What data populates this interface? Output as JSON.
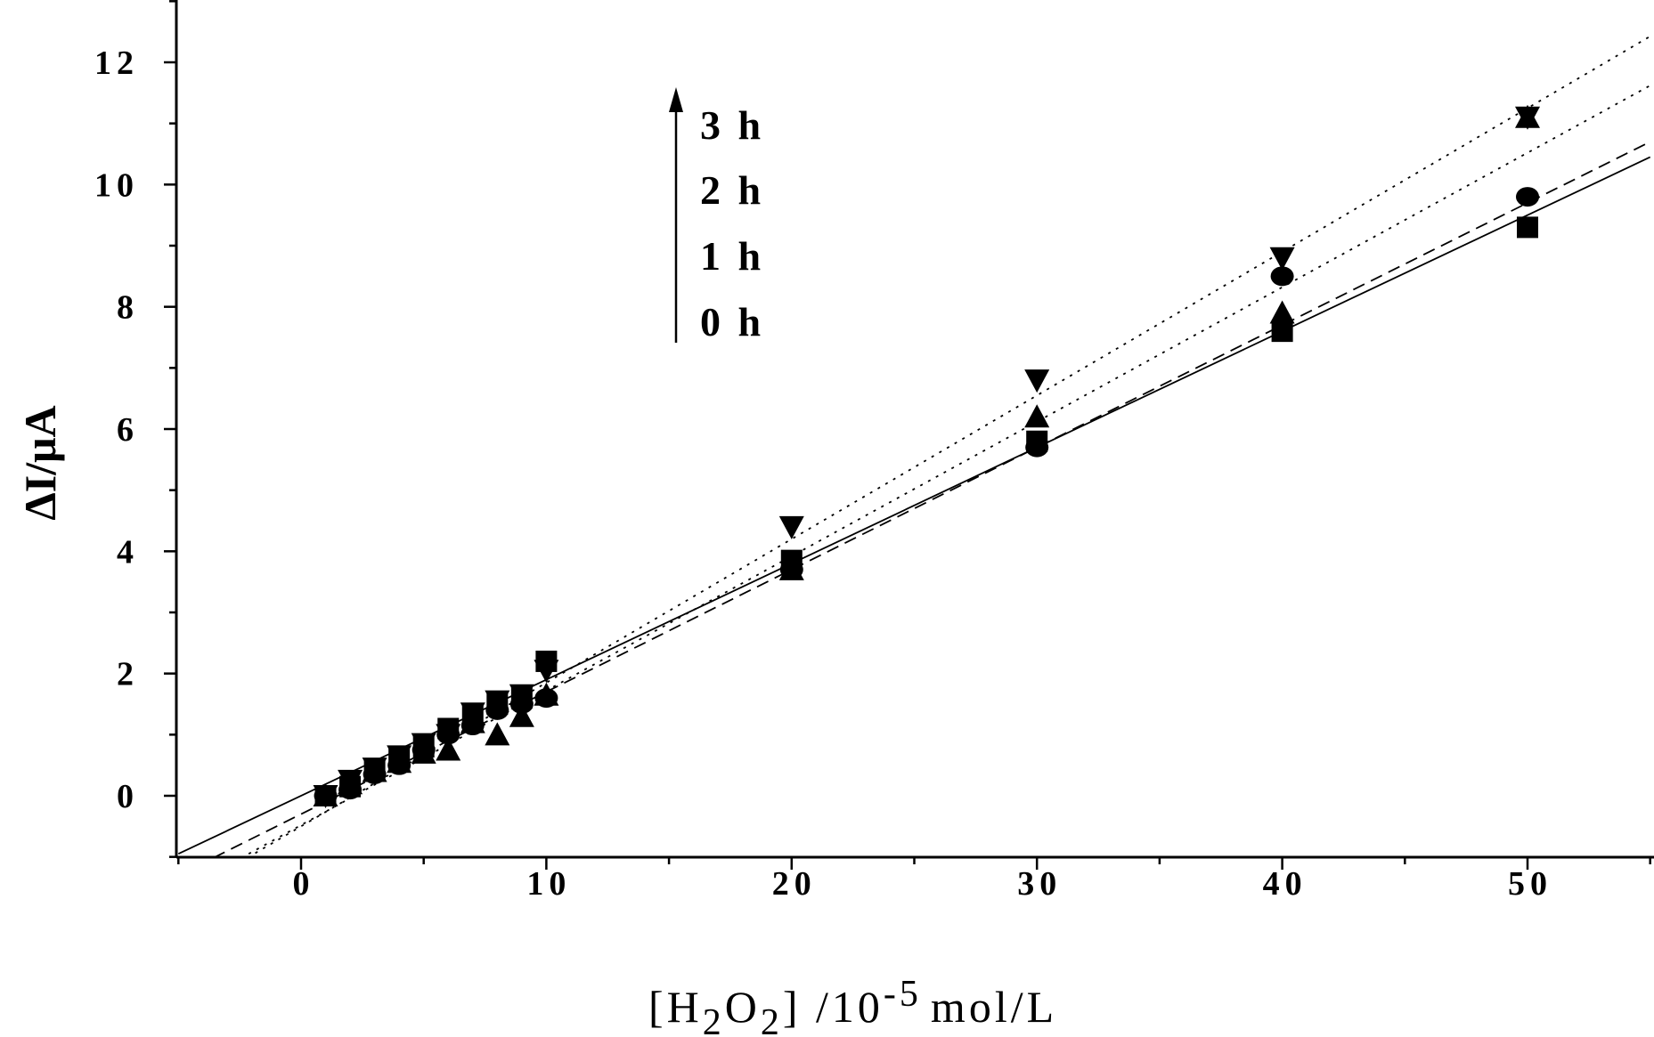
{
  "chart_data": {
    "type": "scatter",
    "xlabel": {
      "prefix": "[H",
      "sub1": "2",
      "mid": "O",
      "sub2": "2",
      "suffix": "] /10",
      "sup": "-5",
      "unit": "mol/L"
    },
    "ylabel": "ΔI/μA",
    "xlim": [
      -5,
      55
    ],
    "ylim": [
      -1,
      13
    ],
    "xticks": [
      0,
      10,
      20,
      30,
      40,
      50
    ],
    "xtick_labels": [
      "0",
      "10",
      "20",
      "30",
      "40",
      "50"
    ],
    "xminor_step": 5,
    "yticks": [
      0,
      2,
      4,
      6,
      8,
      10,
      12
    ],
    "ytick_labels": [
      "0",
      "2",
      "4",
      "6",
      "8",
      "10",
      "12"
    ],
    "yminor_step": 1,
    "grid": false,
    "annotation": {
      "labels": [
        "3 h",
        "2 h",
        "1 h",
        "0 h"
      ],
      "direction": "up"
    },
    "series": [
      {
        "marker": "square",
        "line_style": "solid",
        "points": [
          [
            1,
            0.0
          ],
          [
            2,
            0.15
          ],
          [
            3,
            0.4
          ],
          [
            4,
            0.6
          ],
          [
            5,
            0.8
          ],
          [
            6,
            1.1
          ],
          [
            7,
            1.3
          ],
          [
            8,
            1.5
          ],
          [
            9,
            1.6
          ],
          [
            10,
            2.2
          ],
          [
            20,
            3.85
          ],
          [
            30,
            5.8
          ],
          [
            40,
            7.6
          ],
          [
            50,
            9.3
          ]
        ],
        "fit": {
          "slope": 0.19,
          "intercept": 0.0
        }
      },
      {
        "marker": "circle",
        "line_style": "solid",
        "points": [
          [
            1,
            0.0
          ],
          [
            2,
            0.1
          ],
          [
            3,
            0.35
          ],
          [
            4,
            0.5
          ],
          [
            5,
            0.75
          ],
          [
            6,
            1.0
          ],
          [
            7,
            1.15
          ],
          [
            8,
            1.4
          ],
          [
            9,
            1.5
          ],
          [
            10,
            1.6
          ],
          [
            20,
            3.7
          ],
          [
            30,
            5.7
          ],
          [
            40,
            8.5
          ],
          [
            50,
            9.8
          ]
        ],
        "fit": null
      },
      {
        "marker": "triangle-up",
        "line_style": "dashed",
        "points": [
          [
            1,
            0.0
          ],
          [
            2,
            0.2
          ],
          [
            3,
            0.4
          ],
          [
            4,
            0.55
          ],
          [
            5,
            0.7
          ],
          [
            6,
            0.75
          ],
          [
            7,
            1.2
          ],
          [
            8,
            1.0
          ],
          [
            9,
            1.3
          ],
          [
            10,
            1.65
          ],
          [
            20,
            3.7
          ],
          [
            30,
            6.2
          ],
          [
            40,
            7.9
          ],
          [
            50,
            11.1
          ]
        ],
        "fit": {
          "slope": 0.2,
          "intercept": -0.3
        }
      },
      {
        "marker": "triangle-down",
        "line_style": "dotted",
        "points": [
          [
            1,
            0.0
          ],
          [
            2,
            0.25
          ],
          [
            3,
            0.45
          ],
          [
            4,
            0.65
          ],
          [
            5,
            0.85
          ],
          [
            6,
            1.0
          ],
          [
            7,
            1.35
          ],
          [
            8,
            1.55
          ],
          [
            9,
            1.65
          ],
          [
            10,
            2.05
          ],
          [
            20,
            4.4
          ],
          [
            30,
            6.8
          ],
          [
            40,
            8.8
          ],
          [
            50,
            11.1
          ]
        ],
        "fit": {
          "slope": 0.235,
          "intercept": -0.5
        }
      },
      {
        "marker": "none",
        "line_style": "dotted",
        "points": [],
        "fit": {
          "slope": 0.22,
          "intercept": -0.48
        }
      }
    ]
  }
}
